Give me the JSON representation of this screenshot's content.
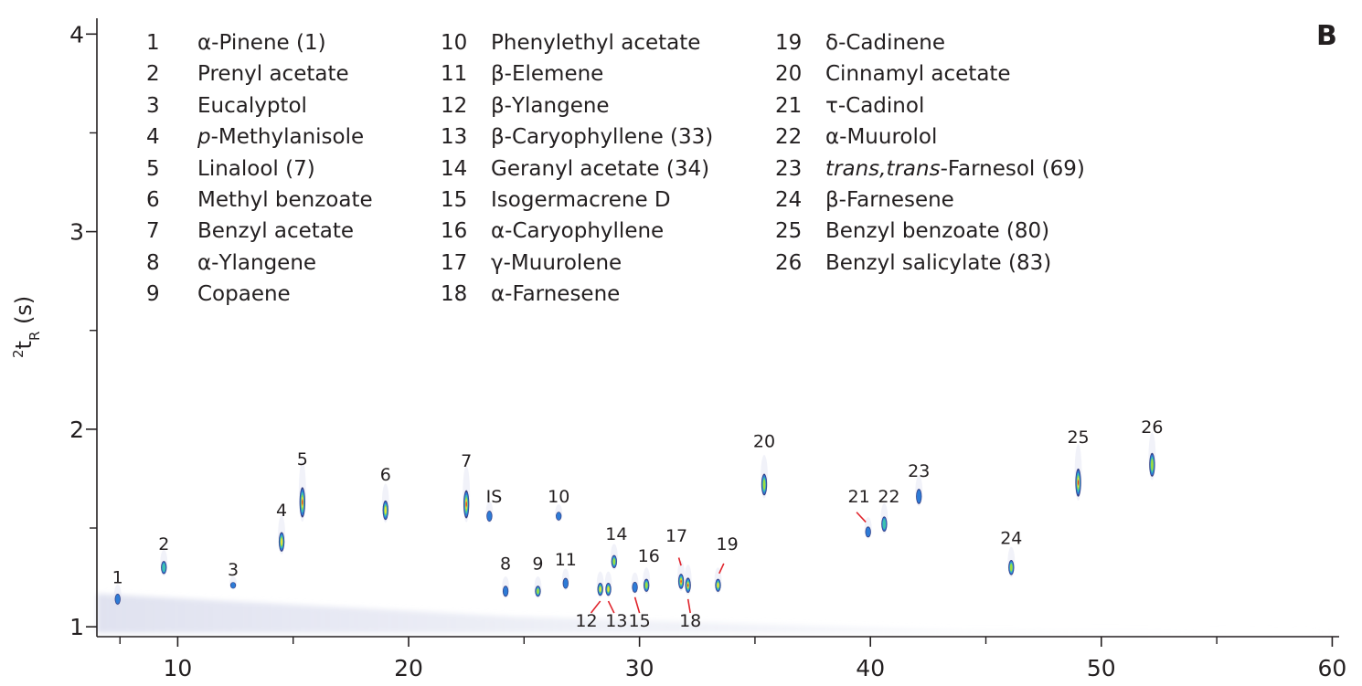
{
  "panel_label": "B",
  "chart_data": {
    "type": "scatter",
    "title": "",
    "xlabel": "",
    "ylabel": {
      "sup": "2",
      "main": "t",
      "sub": "R",
      "unit": " (s)"
    },
    "xlim": [
      6.5,
      60.3
    ],
    "ylim": [
      0.95,
      4.08
    ],
    "xticks": [
      10,
      20,
      30,
      40,
      50,
      60
    ],
    "yticks": [
      1,
      2,
      3,
      4
    ],
    "grid": false,
    "peaks": [
      {
        "label": "1",
        "x": 7.4,
        "y": 1.14,
        "h": 0.05,
        "w": 0.09,
        "intensity": 0.15
      },
      {
        "label": "2",
        "x": 9.4,
        "y": 1.3,
        "h": 0.06,
        "w": 0.12,
        "intensity": 0.35
      },
      {
        "label": "3",
        "x": 12.4,
        "y": 1.21,
        "h": 0.03,
        "w": 0.06,
        "intensity": 0.05
      },
      {
        "label": "4",
        "x": 14.5,
        "y": 1.43,
        "h": 0.09,
        "w": 0.12,
        "intensity": 0.6
      },
      {
        "label": "5",
        "x": 15.4,
        "y": 1.63,
        "h": 0.14,
        "w": 0.15,
        "intensity": 0.95
      },
      {
        "label": "6",
        "x": 19.0,
        "y": 1.59,
        "h": 0.09,
        "w": 0.13,
        "intensity": 0.65
      },
      {
        "label": "7",
        "x": 22.5,
        "y": 1.62,
        "h": 0.13,
        "w": 0.15,
        "intensity": 0.95
      },
      {
        "label": "IS",
        "x": 23.5,
        "y": 1.56,
        "h": 0.05,
        "w": 0.1,
        "intensity": 0.15
      },
      {
        "label": "10",
        "x": 26.5,
        "y": 1.56,
        "h": 0.04,
        "w": 0.06,
        "intensity": 0.04
      },
      {
        "label": "8",
        "x": 24.2,
        "y": 1.18,
        "h": 0.05,
        "w": 0.09,
        "intensity": 0.2
      },
      {
        "label": "9",
        "x": 25.6,
        "y": 1.18,
        "h": 0.05,
        "w": 0.1,
        "intensity": 0.5
      },
      {
        "label": "11",
        "x": 26.8,
        "y": 1.22,
        "h": 0.05,
        "w": 0.1,
        "intensity": 0.2
      },
      {
        "label": "12",
        "x": 28.3,
        "y": 1.19,
        "h": 0.06,
        "w": 0.11,
        "intensity": 0.65
      },
      {
        "label": "13",
        "x": 28.65,
        "y": 1.19,
        "h": 0.06,
        "w": 0.11,
        "intensity": 0.75
      },
      {
        "label": "14",
        "x": 28.9,
        "y": 1.33,
        "h": 0.06,
        "w": 0.09,
        "intensity": 0.5
      },
      {
        "label": "15",
        "x": 29.8,
        "y": 1.2,
        "h": 0.05,
        "w": 0.09,
        "intensity": 0.2
      },
      {
        "label": "16",
        "x": 30.3,
        "y": 1.21,
        "h": 0.06,
        "w": 0.11,
        "intensity": 0.55
      },
      {
        "label": "17",
        "x": 31.8,
        "y": 1.23,
        "h": 0.07,
        "w": 0.11,
        "intensity": 0.95
      },
      {
        "label": "18",
        "x": 32.1,
        "y": 1.21,
        "h": 0.07,
        "w": 0.11,
        "intensity": 0.95
      },
      {
        "label": "19",
        "x": 33.4,
        "y": 1.21,
        "h": 0.06,
        "w": 0.11,
        "intensity": 0.6
      },
      {
        "label": "20",
        "x": 35.4,
        "y": 1.72,
        "h": 0.1,
        "w": 0.14,
        "intensity": 0.55
      },
      {
        "label": "21",
        "x": 39.9,
        "y": 1.48,
        "h": 0.05,
        "w": 0.11,
        "intensity": 0.2
      },
      {
        "label": "22",
        "x": 40.6,
        "y": 1.52,
        "h": 0.07,
        "w": 0.11,
        "intensity": 0.35
      },
      {
        "label": "23",
        "x": 42.1,
        "y": 1.66,
        "h": 0.07,
        "w": 0.1,
        "intensity": 0.25
      },
      {
        "label": "24",
        "x": 46.1,
        "y": 1.3,
        "h": 0.07,
        "w": 0.11,
        "intensity": 0.5
      },
      {
        "label": "25",
        "x": 49.0,
        "y": 1.73,
        "h": 0.13,
        "w": 0.16,
        "intensity": 0.95
      },
      {
        "label": "26",
        "x": 52.2,
        "y": 1.82,
        "h": 0.11,
        "w": 0.12,
        "intensity": 0.5
      }
    ],
    "peak_labels": [
      {
        "text": "1",
        "x": 7.4,
        "y": 1.22
      },
      {
        "text": "2",
        "x": 9.4,
        "y": 1.39
      },
      {
        "text": "3",
        "x": 12.4,
        "y": 1.26
      },
      {
        "text": "4",
        "x": 14.5,
        "y": 1.56
      },
      {
        "text": "5",
        "x": 15.4,
        "y": 1.82
      },
      {
        "text": "6",
        "x": 19.0,
        "y": 1.74
      },
      {
        "text": "7",
        "x": 22.5,
        "y": 1.81
      },
      {
        "text": "IS",
        "x": 23.7,
        "y": 1.63
      },
      {
        "text": "10",
        "x": 26.5,
        "y": 1.63
      },
      {
        "text": "8",
        "x": 24.2,
        "y": 1.29
      },
      {
        "text": "9",
        "x": 25.6,
        "y": 1.29
      },
      {
        "text": "11",
        "x": 26.8,
        "y": 1.31
      },
      {
        "text": "14",
        "x": 29.0,
        "y": 1.44
      },
      {
        "text": "16",
        "x": 30.4,
        "y": 1.33
      },
      {
        "text": "17",
        "x": 31.6,
        "y": 1.43
      },
      {
        "text": "19",
        "x": 33.8,
        "y": 1.39
      },
      {
        "text": "20",
        "x": 35.4,
        "y": 1.91
      },
      {
        "text": "21",
        "x": 39.5,
        "y": 1.63
      },
      {
        "text": "22",
        "x": 40.8,
        "y": 1.63
      },
      {
        "text": "23",
        "x": 42.1,
        "y": 1.76
      },
      {
        "text": "24",
        "x": 46.1,
        "y": 1.42
      },
      {
        "text": "25",
        "x": 49.0,
        "y": 1.93
      },
      {
        "text": "26",
        "x": 52.2,
        "y": 1.98
      },
      {
        "text": "12",
        "x": 27.7,
        "y": 1.0
      },
      {
        "text": "13",
        "x": 29.0,
        "y": 1.0
      },
      {
        "text": "15",
        "x": 30.0,
        "y": 1.0
      },
      {
        "text": "18",
        "x": 32.2,
        "y": 1.0
      }
    ],
    "leaders": [
      {
        "x1": 28.3,
        "y1": 1.13,
        "x2": 27.9,
        "y2": 1.07
      },
      {
        "x1": 28.65,
        "y1": 1.13,
        "x2": 28.9,
        "y2": 1.07
      },
      {
        "x1": 29.8,
        "y1": 1.15,
        "x2": 30.0,
        "y2": 1.07
      },
      {
        "x1": 31.8,
        "y1": 1.31,
        "x2": 31.7,
        "y2": 1.35
      },
      {
        "x1": 32.1,
        "y1": 1.14,
        "x2": 32.2,
        "y2": 1.07
      },
      {
        "x1": 33.45,
        "y1": 1.27,
        "x2": 33.65,
        "y2": 1.32
      },
      {
        "x1": 39.8,
        "y1": 1.53,
        "x2": 39.4,
        "y2": 1.58
      }
    ],
    "legend": [
      [
        {
          "n": "1",
          "name": "α-Pinene (1)"
        },
        {
          "n": "2",
          "name": "Prenyl acetate"
        },
        {
          "n": "3",
          "name": "Eucalyptol"
        },
        {
          "n": "4",
          "italic": "p",
          "name": "-Methylanisole"
        },
        {
          "n": "5",
          "name": "Linalool (7)"
        },
        {
          "n": "6",
          "name": "Methyl benzoate"
        },
        {
          "n": "7",
          "name": "Benzyl acetate"
        },
        {
          "n": "8",
          "name": "α-Ylangene"
        },
        {
          "n": "9",
          "name": "Copaene"
        }
      ],
      [
        {
          "n": "10",
          "name": "Phenylethyl acetate"
        },
        {
          "n": "11",
          "name": "β-Elemene"
        },
        {
          "n": "12",
          "name": "β-Ylangene"
        },
        {
          "n": "13",
          "name": "β-Caryophyllene (33)"
        },
        {
          "n": "14",
          "name": "Geranyl acetate (34)"
        },
        {
          "n": "15",
          "name": "Isogermacrene D"
        },
        {
          "n": "16",
          "name": "α-Caryophyllene"
        },
        {
          "n": "17",
          "name": "γ-Muurolene"
        },
        {
          "n": "18",
          "name": "α-Farnesene"
        }
      ],
      [
        {
          "n": "19",
          "name": "δ-Cadinene"
        },
        {
          "n": "20",
          "name": "Cinnamyl acetate"
        },
        {
          "n": "21",
          "name": "τ-Cadinol"
        },
        {
          "n": "22",
          "name": "α-Muurolol"
        },
        {
          "n": "23",
          "italic": "trans,trans",
          "name": "-Farnesol (69)"
        },
        {
          "n": "24",
          "name": "β-Farnesene"
        },
        {
          "n": "25",
          "name": "Benzyl benzoate (80)"
        },
        {
          "n": "26",
          "name": "Benzyl salicylate (83)"
        }
      ]
    ],
    "colors": {
      "axis": "#231f20",
      "background": "#ffffff",
      "leader": "#e0232b"
    }
  }
}
